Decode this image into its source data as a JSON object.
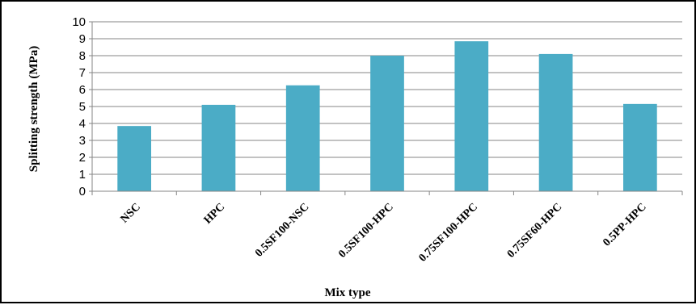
{
  "chart_data": {
    "type": "bar",
    "title": "",
    "xlabel": "Mix type",
    "ylabel": "Splitting strength (MPa)",
    "categories": [
      "NSC",
      "HPC",
      "0.5SF100-NSC",
      "0.5SF100-HPC",
      "0.75SF100-HPC",
      "0.75SF60-HPC",
      "0.5PP-HPC"
    ],
    "values": [
      3.85,
      5.1,
      6.25,
      8.0,
      8.85,
      8.1,
      5.15
    ],
    "ylim": [
      0,
      10
    ],
    "yticks": [
      0,
      1,
      2,
      3,
      4,
      5,
      6,
      7,
      8,
      9,
      10
    ],
    "grid": true,
    "legend": "none",
    "bar_color": "#4bacc6"
  }
}
